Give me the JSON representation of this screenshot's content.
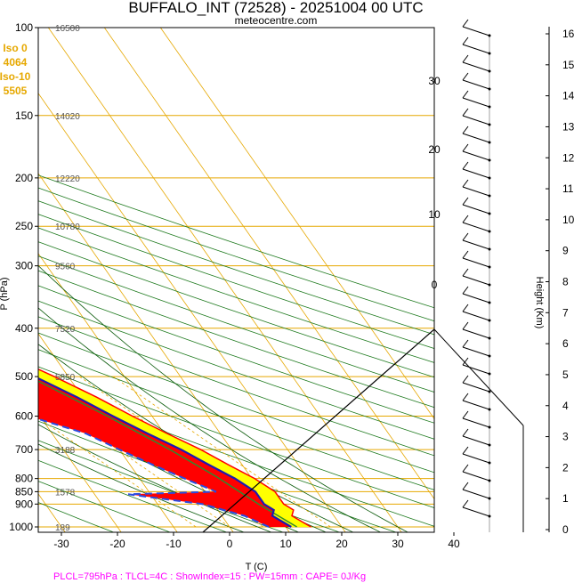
{
  "title": "BUFFALO_INT (72528) - 20251004 00 UTC",
  "subtitle": "meteocentre.com",
  "iso_box": {
    "line1": "Iso 0",
    "line2": "4064",
    "line3": "Iso-10",
    "line4": "5505"
  },
  "xlabel": "T (C)",
  "ylabel": "P (hPa)",
  "height_label": "Height (Km)",
  "footer": "PLCL=795hPa : TLCL=4C : ShowIndex=15 : PW=15mm : CAPE= 0J/Kg",
  "colors": {
    "temperature": "#1a1ab4",
    "dewpoint": "#2a4be0",
    "parcel": "#ff0000",
    "cape_fill": "#ff0000",
    "cin_fill": "#ffff00",
    "isobar": "#e6a800",
    "dry_adiabat": "#1e7a1e",
    "mixing": "#e6a800",
    "env_line": "#000000"
  },
  "chart_data": {
    "type": "line",
    "title": "BUFFALO_INT (72528) - 20251004 00 UTC",
    "xlabel": "T (C)",
    "ylabel": "P (hPa)",
    "x_ticks": [
      "-30",
      "-20",
      "-10",
      "0",
      "10",
      "20",
      "30",
      "40"
    ],
    "y_ticks": [
      "100",
      "150",
      "200",
      "250",
      "300",
      "400",
      "500",
      "600",
      "700",
      "800",
      "850",
      "900",
      "1000"
    ],
    "height_ticks": [
      "0",
      "1",
      "2",
      "3",
      "4",
      "5",
      "6",
      "7",
      "8",
      "9",
      "10",
      "11",
      "12",
      "13",
      "14",
      "15",
      "16"
    ],
    "altitude_labels": [
      {
        "p": 100,
        "label": "16500"
      },
      {
        "p": 150,
        "label": "14020"
      },
      {
        "p": 200,
        "label": "12220"
      },
      {
        "p": 250,
        "label": "10780"
      },
      {
        "p": 300,
        "label": "9560"
      },
      {
        "p": 400,
        "label": "7520"
      },
      {
        "p": 500,
        "label": "5850"
      },
      {
        "p": 700,
        "label": "3188"
      },
      {
        "p": 850,
        "label": "1578"
      },
      {
        "p": 1000,
        "label": "189"
      }
    ],
    "temperature": [
      {
        "p": 1000,
        "t": 11
      },
      {
        "p": 950,
        "t": 9
      },
      {
        "p": 925,
        "t": 10
      },
      {
        "p": 900,
        "t": 9
      },
      {
        "p": 850,
        "t": 9
      },
      {
        "p": 800,
        "t": 7
      },
      {
        "p": 750,
        "t": 4
      },
      {
        "p": 700,
        "t": 1
      },
      {
        "p": 650,
        "t": -3
      },
      {
        "p": 600,
        "t": -7
      },
      {
        "p": 550,
        "t": -11
      },
      {
        "p": 500,
        "t": -16
      },
      {
        "p": 450,
        "t": -22
      },
      {
        "p": 400,
        "t": -28
      },
      {
        "p": 350,
        "t": -36
      },
      {
        "p": 300,
        "t": -44
      },
      {
        "p": 250,
        "t": -53
      },
      {
        "p": 200,
        "t": -55
      },
      {
        "p": 150,
        "t": -57
      },
      {
        "p": 120,
        "t": -58
      },
      {
        "p": 100,
        "t": -60
      }
    ],
    "dewpoint": [
      {
        "p": 1000,
        "t": 7
      },
      {
        "p": 950,
        "t": 4
      },
      {
        "p": 900,
        "t": -2
      },
      {
        "p": 860,
        "t": -14
      },
      {
        "p": 850,
        "t": 2
      },
      {
        "p": 800,
        "t": -2
      },
      {
        "p": 750,
        "t": -6
      },
      {
        "p": 700,
        "t": -10
      },
      {
        "p": 650,
        "t": -14
      },
      {
        "p": 600,
        "t": -22
      },
      {
        "p": 550,
        "t": -25
      },
      {
        "p": 500,
        "t": -27
      },
      {
        "p": 450,
        "t": -31
      },
      {
        "p": 400,
        "t": -33
      },
      {
        "p": 350,
        "t": -42
      },
      {
        "p": 300,
        "t": -57
      },
      {
        "p": 250,
        "t": -57
      },
      {
        "p": 200,
        "t": -64
      },
      {
        "p": 170,
        "t": -78
      },
      {
        "p": 150,
        "t": -80
      },
      {
        "p": 120,
        "t": -80
      },
      {
        "p": 100,
        "t": -81
      }
    ],
    "parcel": [
      {
        "p": 1000,
        "t": 12
      },
      {
        "p": 900,
        "t": 8
      },
      {
        "p": 795,
        "t": 4
      },
      {
        "p": 700,
        "t": -1
      },
      {
        "p": 600,
        "t": -8
      },
      {
        "p": 500,
        "t": -17
      },
      {
        "p": 400,
        "t": -30
      },
      {
        "p": 300,
        "t": -46
      },
      {
        "p": 250,
        "t": -56
      }
    ],
    "isotherm_labels": [
      "-30",
      "-20",
      "-10",
      "0",
      "10",
      "20",
      "30"
    ],
    "xlim": [
      -35,
      45
    ],
    "ylim": [
      1050,
      100
    ],
    "grid": true
  }
}
